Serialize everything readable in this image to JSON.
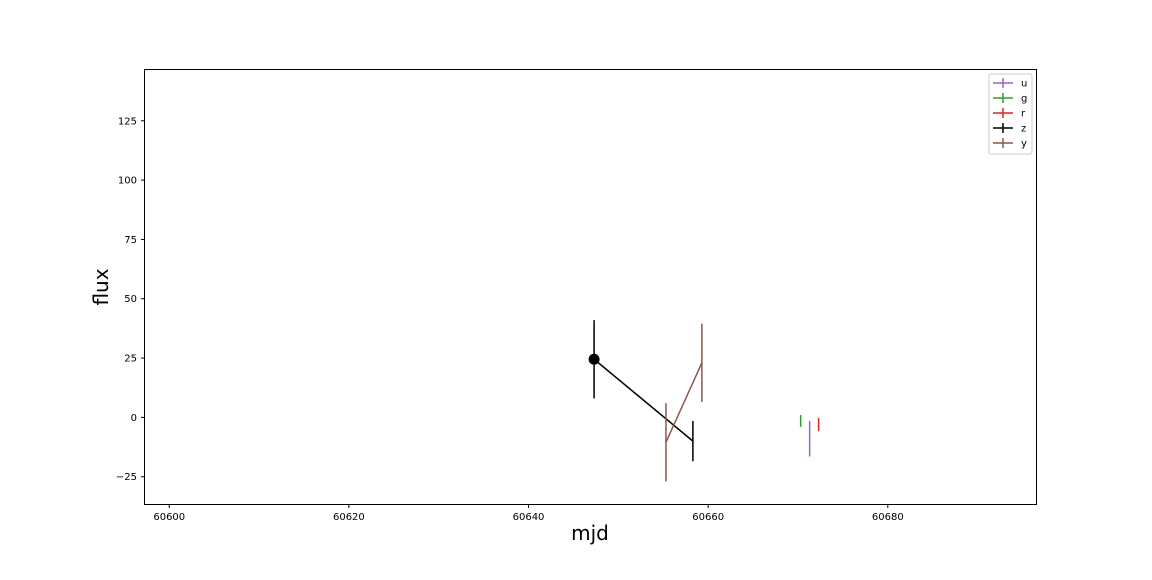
{
  "chart_data": {
    "type": "scatter",
    "title": "",
    "xlabel": "mjd",
    "ylabel": "flux",
    "xlim": [
      60597.3,
      60696.5
    ],
    "ylim": [
      -36.5,
      146.4
    ],
    "xticks": [
      60600,
      60620,
      60640,
      60660,
      60680
    ],
    "xtick_labels": [
      "60600",
      "60620",
      "60640",
      "60660",
      "60680"
    ],
    "yticks": [
      -25,
      0,
      25,
      50,
      75,
      100,
      125
    ],
    "ytick_labels": [
      "−25",
      "0",
      "25",
      "50",
      "75",
      "100",
      "125"
    ],
    "grid": false,
    "legend_position": "top-right",
    "series": [
      {
        "name": "u",
        "color": "#9467bd",
        "points": [
          {
            "x": 60671.3,
            "y": -9.0,
            "err": 7.5
          }
        ]
      },
      {
        "name": "g",
        "color": "#2ca02c",
        "points": [
          {
            "x": 60670.3,
            "y": -1.5,
            "err": 2.5
          }
        ]
      },
      {
        "name": "r",
        "color": "#d62728",
        "points": [
          {
            "x": 60672.3,
            "y": -3.0,
            "err": 2.8
          }
        ]
      },
      {
        "name": "z",
        "color": "#000000",
        "points": [
          {
            "x": 60647.3,
            "y": 24.5,
            "err": 16.5
          },
          {
            "x": 60658.3,
            "y": -10.0,
            "err": 8.5
          }
        ],
        "highlight_index": 0
      },
      {
        "name": "y",
        "color": "#8c564b",
        "points": [
          {
            "x": 60655.3,
            "y": -10.5,
            "err": 16.5
          },
          {
            "x": 60659.3,
            "y": 23.0,
            "err": 16.5
          }
        ]
      }
    ]
  }
}
